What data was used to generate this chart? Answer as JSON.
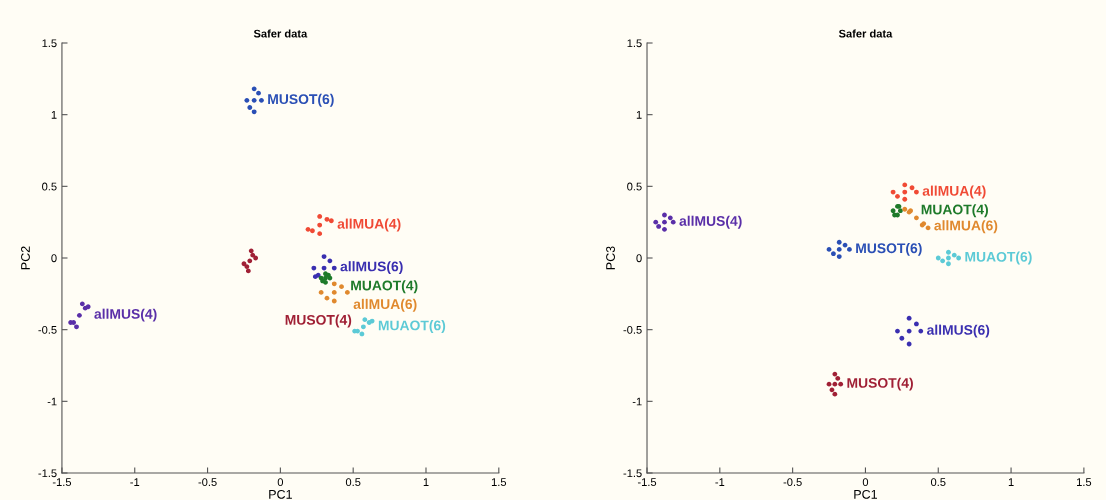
{
  "chart_data": [
    {
      "type": "scatter",
      "title": "Safer data",
      "xlabel": "PC1",
      "ylabel": "PC2",
      "marker": "circle",
      "grid": false,
      "legend": false,
      "xlim": [
        -1.5,
        1.5
      ],
      "ylim": [
        -1.5,
        1.5
      ],
      "xticks": [
        -1.5,
        -1,
        -0.5,
        0,
        0.5,
        1,
        1.5
      ],
      "yticks": [
        -1.5,
        -1,
        -0.5,
        0,
        0.5,
        1,
        1.5
      ],
      "series": [
        {
          "name": "MUSOT(6)",
          "color": "#2a4fb5",
          "x": [
            -0.18,
            -0.23,
            -0.13,
            -0.18,
            -0.18,
            -0.21,
            -0.15
          ],
          "values": [
            1.1,
            1.1,
            1.1,
            1.18,
            1.02,
            1.05,
            1.15
          ]
        },
        {
          "name": "allMUA(4)",
          "color": "#f04a35",
          "x": [
            0.27,
            0.19,
            0.35,
            0.27,
            0.27,
            0.22,
            0.32
          ],
          "values": [
            0.23,
            0.2,
            0.26,
            0.29,
            0.17,
            0.19,
            0.27
          ]
        },
        {
          "name": "allMUS(6)",
          "color": "#3a2fb0",
          "x": [
            0.3,
            0.23,
            0.37,
            0.3,
            0.24,
            0.26,
            0.34
          ],
          "values": [
            -0.07,
            -0.07,
            -0.07,
            0.01,
            -0.13,
            -0.12,
            -0.02
          ]
        },
        {
          "name": "MUAOT(4)",
          "color": "#1e7a2a",
          "x": [
            0.31,
            0.28,
            0.34,
            0.31,
            0.31,
            0.29,
            0.33
          ],
          "values": [
            -0.14,
            -0.14,
            -0.14,
            -0.11,
            -0.17,
            -0.16,
            -0.12
          ]
        },
        {
          "name": "allMUA(6)",
          "color": "#e0892e",
          "x": [
            0.37,
            0.28,
            0.46,
            0.37,
            0.37,
            0.32,
            0.42
          ],
          "values": [
            -0.24,
            -0.24,
            -0.24,
            -0.18,
            -0.3,
            -0.28,
            -0.2
          ]
        },
        {
          "name": "MUAOT(6)",
          "color": "#5ccad6",
          "x": [
            0.57,
            0.51,
            0.63,
            0.58,
            0.56,
            0.53,
            0.61
          ],
          "values": [
            -0.48,
            -0.51,
            -0.44,
            -0.43,
            -0.53,
            -0.51,
            -0.45
          ]
        },
        {
          "name": "MUSOT(4)",
          "color": "#a02035",
          "x": [
            -0.21,
            -0.25,
            -0.17,
            -0.2,
            -0.22,
            -0.23,
            -0.19
          ],
          "values": [
            -0.02,
            -0.04,
            0.0,
            0.05,
            -0.09,
            -0.06,
            0.02
          ]
        },
        {
          "name": "allMUS(4)",
          "color": "#5a2fa8",
          "x": [
            -1.38,
            -1.44,
            -1.32,
            -1.36,
            -1.4,
            -1.42,
            -1.34
          ],
          "values": [
            -0.4,
            -0.45,
            -0.34,
            -0.32,
            -0.48,
            -0.45,
            -0.35
          ]
        }
      ]
    },
    {
      "type": "scatter",
      "title": "Safer data",
      "xlabel": "PC1",
      "ylabel": "PC3",
      "marker": "circle",
      "grid": false,
      "legend": false,
      "xlim": [
        -1.5,
        1.5
      ],
      "ylim": [
        -1.5,
        1.5
      ],
      "xticks": [
        -1.5,
        -1,
        -0.5,
        0,
        0.5,
        1,
        1.5
      ],
      "yticks": [
        -1.5,
        -1,
        -0.5,
        0,
        0.5,
        1,
        1.5
      ],
      "series": [
        {
          "name": "allMUS(4)",
          "color": "#5a2fa8",
          "x": [
            -1.38,
            -1.44,
            -1.32,
            -1.38,
            -1.38,
            -1.42,
            -1.34
          ],
          "values": [
            0.25,
            0.25,
            0.25,
            0.3,
            0.2,
            0.22,
            0.28
          ]
        },
        {
          "name": "MUSOT(6)",
          "color": "#2a4fb5",
          "x": [
            -0.18,
            -0.25,
            -0.11,
            -0.18,
            -0.18,
            -0.22,
            -0.14
          ],
          "values": [
            0.06,
            0.06,
            0.06,
            0.11,
            0.01,
            0.03,
            0.09
          ]
        },
        {
          "name": "allMUA(4)",
          "color": "#f04a35",
          "x": [
            0.27,
            0.19,
            0.35,
            0.27,
            0.27,
            0.22,
            0.32
          ],
          "values": [
            0.46,
            0.46,
            0.46,
            0.51,
            0.41,
            0.43,
            0.49
          ]
        },
        {
          "name": "MUAOT(4)",
          "color": "#1e7a2a",
          "x": [
            0.19,
            0.24,
            0.22,
            0.22,
            0.2,
            0.23
          ],
          "values": [
            0.33,
            0.33,
            0.36,
            0.3,
            0.3,
            0.36
          ]
        },
        {
          "name": "allMUA(6)",
          "color": "#e0892e",
          "x": [
            0.35,
            0.27,
            0.43,
            0.31,
            0.39,
            0.3,
            0.4
          ],
          "values": [
            0.28,
            0.34,
            0.21,
            0.33,
            0.23,
            0.32,
            0.24
          ]
        },
        {
          "name": "MUAOT(6)",
          "color": "#5ccad6",
          "x": [
            0.57,
            0.5,
            0.64,
            0.57,
            0.57,
            0.53,
            0.61
          ],
          "values": [
            0.0,
            0.0,
            0.0,
            0.04,
            -0.04,
            -0.02,
            0.02
          ]
        },
        {
          "name": "allMUS(6)",
          "color": "#3a2fb0",
          "x": [
            0.3,
            0.22,
            0.38,
            0.3,
            0.3,
            0.25,
            0.35
          ],
          "values": [
            -0.51,
            -0.51,
            -0.51,
            -0.42,
            -0.6,
            -0.56,
            -0.46
          ]
        },
        {
          "name": "MUSOT(4)",
          "color": "#a02035",
          "x": [
            -0.21,
            -0.25,
            -0.17,
            -0.21,
            -0.21,
            -0.23,
            -0.19
          ],
          "values": [
            -0.88,
            -0.88,
            -0.88,
            -0.81,
            -0.95,
            -0.92,
            -0.84
          ]
        }
      ]
    }
  ]
}
